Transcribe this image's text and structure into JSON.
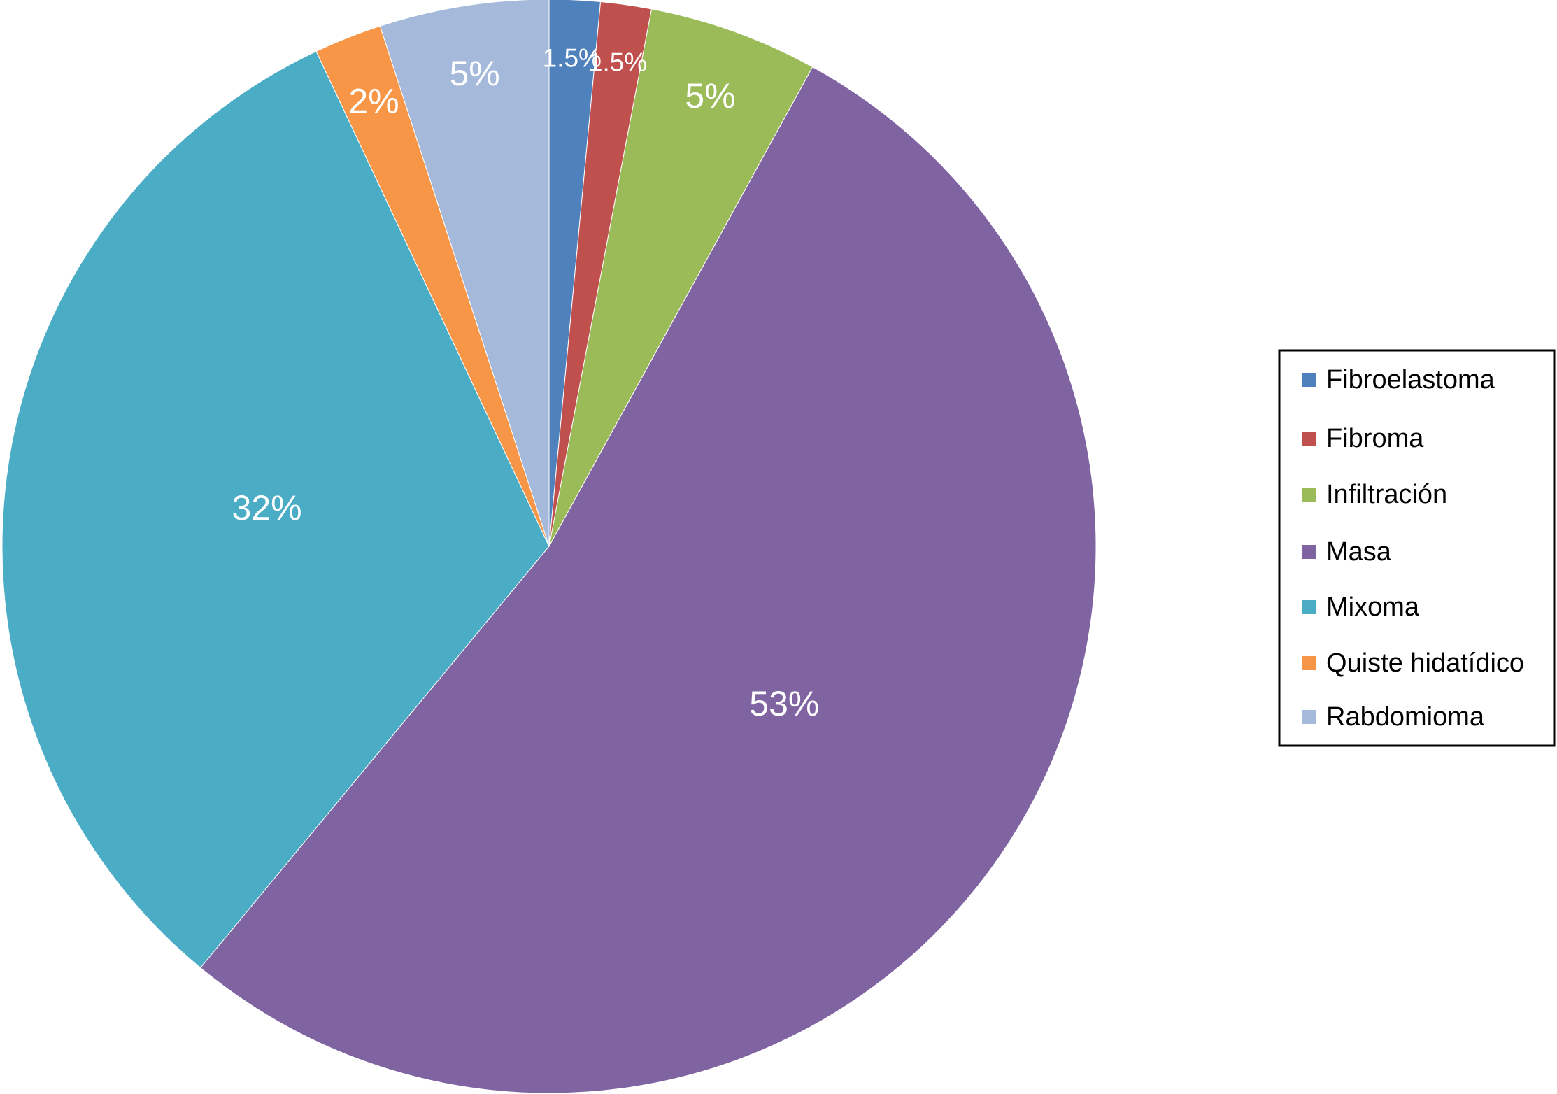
{
  "chart_data": {
    "type": "pie",
    "title": "",
    "legend_position": "right",
    "slices": [
      {
        "name": "Fibroelastoma",
        "value": 1.5,
        "label": "1.5%",
        "color": "#4F81BD"
      },
      {
        "name": "Fibroma",
        "value": 1.5,
        "label": "1.5%",
        "color": "#C0504D"
      },
      {
        "name": "Infiltración",
        "value": 5,
        "label": "5%",
        "color": "#9BBB59"
      },
      {
        "name": "Masa",
        "value": 53,
        "label": "53%",
        "color": "#8064A2"
      },
      {
        "name": "Mixoma",
        "value": 32,
        "label": "32%",
        "color": "#4BACC6"
      },
      {
        "name": "Quiste hidatídico",
        "value": 2,
        "label": "2%",
        "color": "#F79646"
      },
      {
        "name": "Rabdomioma",
        "value": 5,
        "label": "5%",
        "color": "#A5B9DB"
      }
    ]
  }
}
